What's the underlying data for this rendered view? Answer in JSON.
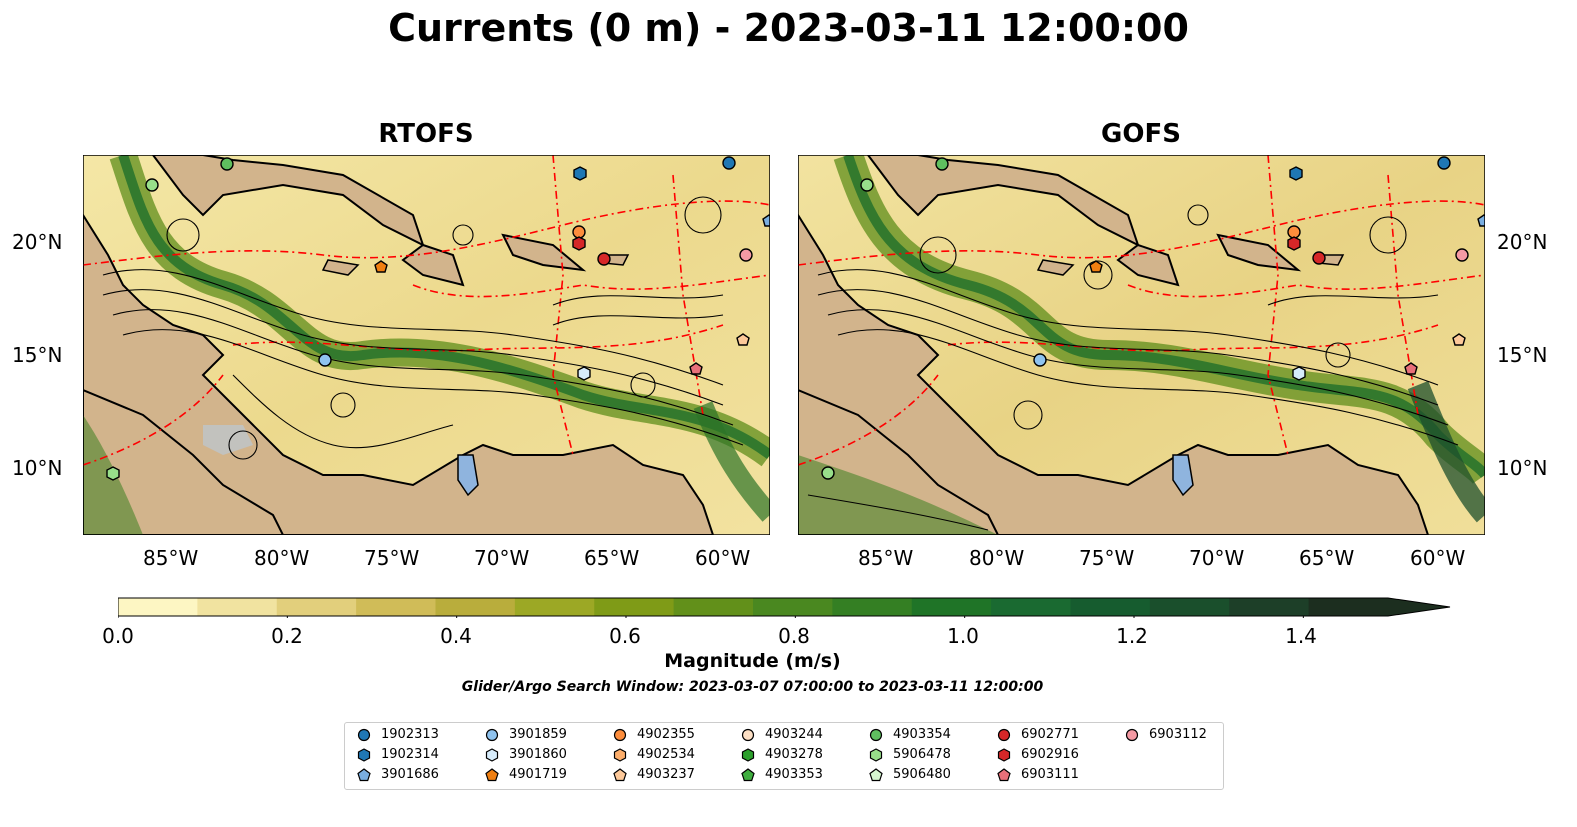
{
  "title": "Currents (0 m) - 2023-03-11 12:00:00",
  "panels": [
    {
      "title": "RTOFS"
    },
    {
      "title": "GOFS"
    }
  ],
  "axes": {
    "x_ticks": [
      "85°W",
      "80°W",
      "75°W",
      "70°W",
      "65°W",
      "60°W"
    ],
    "y_ticks": [
      "20°N",
      "15°N",
      "10°N"
    ]
  },
  "colorbar": {
    "label": "Magnitude (m/s)",
    "ticks": [
      "0.0",
      "0.2",
      "0.4",
      "0.6",
      "0.8",
      "1.0",
      "1.2",
      "1.4"
    ],
    "range": [
      0.0,
      1.5
    ],
    "extend": "max",
    "colors": [
      "#fdf6c3",
      "#f1e3a0",
      "#e2cf7c",
      "#d0bc58",
      "#b9ad3c",
      "#9ca825",
      "#7f9b17",
      "#62901a",
      "#4a8820",
      "#347f23",
      "#1f7427",
      "#1a6a31",
      "#165c2f",
      "#1a4f2c",
      "#1d3f28",
      "#1c2e1f"
    ]
  },
  "search_window": "Glider/Argo Search Window: 2023-03-07 07:00:00 to 2023-03-11 12:00:00",
  "legend": {
    "entries": [
      {
        "id": "1902313",
        "marker": "circle",
        "color": "#1f77b4"
      },
      {
        "id": "1902314",
        "marker": "hexagon",
        "color": "#1f77b4"
      },
      {
        "id": "3901686",
        "marker": "pentagon",
        "color": "#7aaee0"
      },
      {
        "id": "3901859",
        "marker": "circle",
        "color": "#8fc3ef"
      },
      {
        "id": "3901860",
        "marker": "hexagon",
        "color": "#d7ecfb"
      },
      {
        "id": "4901719",
        "marker": "pentagon",
        "color": "#f07f11"
      },
      {
        "id": "4902355",
        "marker": "circle",
        "color": "#fd8d3c"
      },
      {
        "id": "4902534",
        "marker": "hexagon",
        "color": "#fdae6b"
      },
      {
        "id": "4903237",
        "marker": "pentagon",
        "color": "#fdc99a"
      },
      {
        "id": "4903244",
        "marker": "circle",
        "color": "#fde0c5"
      },
      {
        "id": "4903278",
        "marker": "hexagon",
        "color": "#2ca02c"
      },
      {
        "id": "4903353",
        "marker": "pentagon",
        "color": "#3fae3f"
      },
      {
        "id": "4903354",
        "marker": "circle",
        "color": "#5fbf5f"
      },
      {
        "id": "5906478",
        "marker": "hexagon",
        "color": "#98df8a"
      },
      {
        "id": "5906480",
        "marker": "pentagon",
        "color": "#d5f5cf"
      },
      {
        "id": "6902771",
        "marker": "circle",
        "color": "#d62728"
      },
      {
        "id": "6902916",
        "marker": "hexagon",
        "color": "#d62728"
      },
      {
        "id": "6903111",
        "marker": "pentagon",
        "color": "#e8707a"
      },
      {
        "id": "6903112",
        "marker": "circle",
        "color": "#f59aa4"
      }
    ]
  },
  "colors": {
    "land": "#d2b48c",
    "lake": "#8fb4de",
    "eez": "#ff0000",
    "streamline": "#000000"
  }
}
